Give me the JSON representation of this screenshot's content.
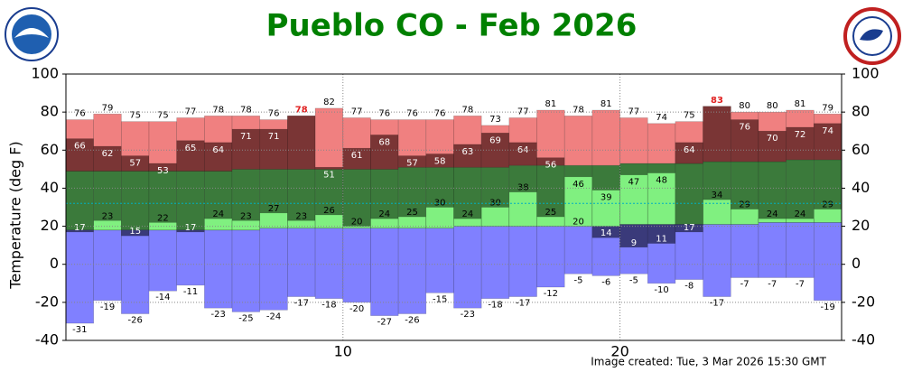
{
  "chart_data": {
    "type": "range_bar",
    "title": "Pueblo CO - Feb 2026",
    "y_label": "Temperature (deg F)",
    "footer": "Image created: Tue, 3 Mar 2026 15:30 GMT",
    "xlim": [
      0,
      28
    ],
    "xticks": [
      10,
      20
    ],
    "ylim": [
      -40,
      100
    ],
    "yticks": [
      -40,
      -20,
      0,
      20,
      40,
      60,
      80,
      100
    ],
    "grid": true,
    "freezing": 32,
    "record_high": [
      76,
      79,
      75,
      75,
      77,
      78,
      78,
      76,
      78,
      82,
      77,
      76,
      76,
      76,
      78,
      73,
      77,
      81,
      78,
      81,
      77,
      74,
      75,
      83,
      80,
      80,
      81,
      79
    ],
    "high": [
      66,
      62,
      57,
      53,
      65,
      64,
      71,
      71,
      78,
      51,
      61,
      68,
      57,
      58,
      63,
      69,
      64,
      56,
      46,
      39,
      47,
      48,
      64,
      83,
      76,
      70,
      72,
      74
    ],
    "low": [
      17,
      23,
      15,
      22,
      17,
      24,
      23,
      27,
      23,
      26,
      20,
      24,
      25,
      30,
      24,
      30,
      38,
      25,
      20,
      14,
      9,
      11,
      17,
      34,
      29,
      24,
      24,
      29
    ],
    "record_low": [
      -31,
      -19,
      -26,
      -14,
      -11,
      -23,
      -25,
      -24,
      -17,
      -18,
      -20,
      -27,
      -26,
      -15,
      -23,
      -18,
      -17,
      -12,
      -5,
      -6,
      -5,
      -10,
      -8,
      -17,
      -7,
      -7,
      -7,
      -19
    ],
    "normal_high": [
      49,
      49,
      49,
      49,
      49,
      49,
      50,
      50,
      50,
      50,
      50,
      50,
      51,
      51,
      51,
      51,
      52,
      52,
      52,
      52,
      53,
      53,
      53,
      54,
      54,
      54,
      55,
      55
    ],
    "normal_low": [
      18,
      18,
      18,
      18,
      18,
      18,
      18,
      19,
      19,
      19,
      19,
      19,
      19,
      19,
      20,
      20,
      20,
      20,
      20,
      20,
      21,
      21,
      21,
      21,
      21,
      22,
      22,
      22
    ],
    "colors": {
      "record_high": "#f08080",
      "normal": "#3b7a3b",
      "record_low": "#8080ff",
      "above": "#7a3535",
      "below": "#3a3a7a",
      "within": "#80f080",
      "record_label": "#e02020",
      "title": "#008000",
      "freezing": "#00b0c0"
    }
  }
}
